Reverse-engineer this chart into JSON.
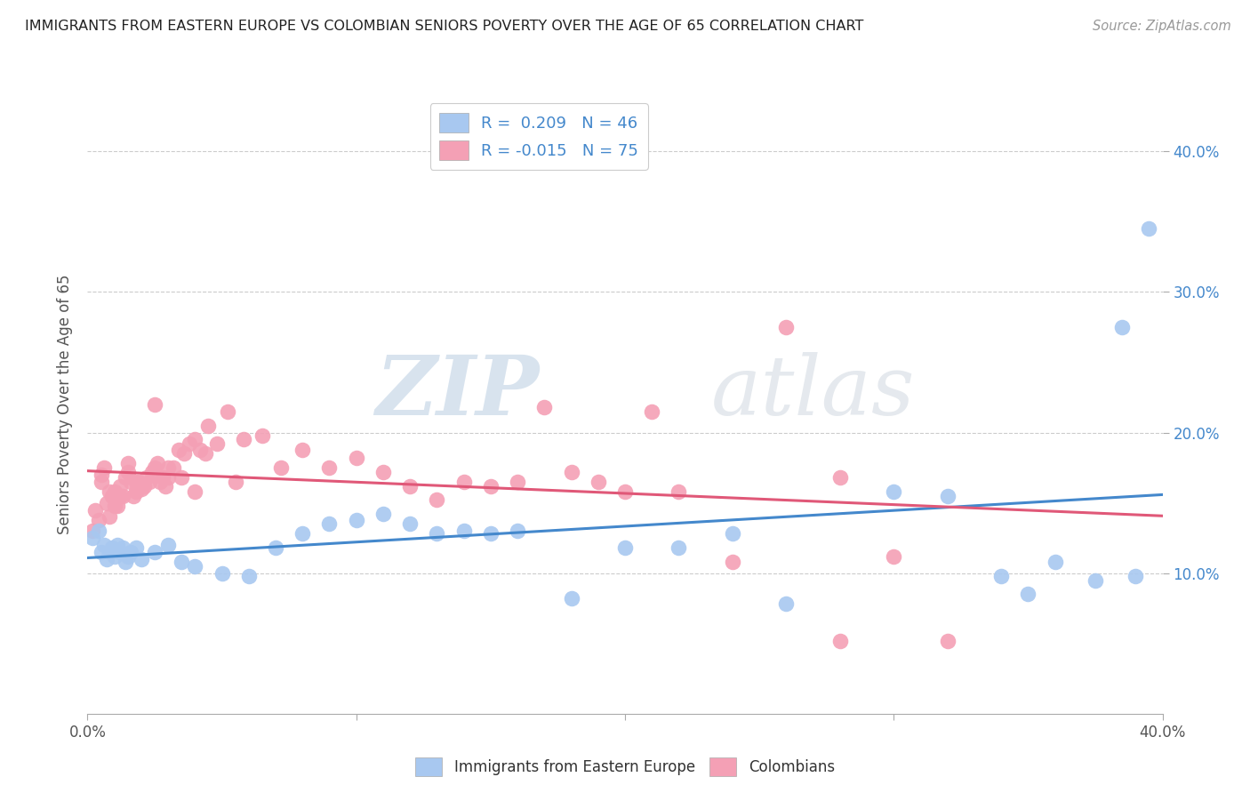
{
  "title": "IMMIGRANTS FROM EASTERN EUROPE VS COLOMBIAN SENIORS POVERTY OVER THE AGE OF 65 CORRELATION CHART",
  "source": "Source: ZipAtlas.com",
  "ylabel": "Seniors Poverty Over the Age of 65",
  "xlim": [
    0.0,
    0.4
  ],
  "ylim": [
    0.0,
    0.44
  ],
  "yticks": [
    0.1,
    0.2,
    0.3,
    0.4
  ],
  "ytick_labels": [
    "10.0%",
    "20.0%",
    "30.0%",
    "40.0%"
  ],
  "xticks": [
    0.0,
    0.1,
    0.2,
    0.3,
    0.4
  ],
  "xtick_labels": [
    "0.0%",
    "",
    "",
    "",
    "40.0%"
  ],
  "legend_labels": [
    "Immigrants from Eastern Europe",
    "Colombians"
  ],
  "r_blue": 0.209,
  "n_blue": 46,
  "r_pink": -0.015,
  "n_pink": 75,
  "blue_color": "#A8C8F0",
  "pink_color": "#F4A0B5",
  "line_blue": "#4488CC",
  "line_pink": "#E05878",
  "watermark_zip": "ZIP",
  "watermark_atlas": "atlas",
  "background_color": "#FFFFFF",
  "grid_color": "#CCCCCC",
  "title_color": "#222222",
  "source_color": "#999999",
  "tick_color": "#555555",
  "blue_x": [
    0.002,
    0.004,
    0.005,
    0.006,
    0.007,
    0.008,
    0.009,
    0.01,
    0.011,
    0.012,
    0.013,
    0.014,
    0.015,
    0.016,
    0.018,
    0.02,
    0.025,
    0.03,
    0.035,
    0.04,
    0.05,
    0.06,
    0.07,
    0.08,
    0.09,
    0.1,
    0.11,
    0.12,
    0.13,
    0.14,
    0.15,
    0.16,
    0.18,
    0.2,
    0.22,
    0.24,
    0.26,
    0.3,
    0.32,
    0.34,
    0.35,
    0.36,
    0.375,
    0.385,
    0.39,
    0.395
  ],
  "blue_y": [
    0.125,
    0.13,
    0.115,
    0.12,
    0.11,
    0.115,
    0.118,
    0.112,
    0.12,
    0.115,
    0.118,
    0.108,
    0.112,
    0.115,
    0.118,
    0.11,
    0.115,
    0.12,
    0.108,
    0.105,
    0.1,
    0.098,
    0.118,
    0.128,
    0.135,
    0.138,
    0.142,
    0.135,
    0.128,
    0.13,
    0.128,
    0.13,
    0.082,
    0.118,
    0.118,
    0.128,
    0.078,
    0.158,
    0.155,
    0.098,
    0.085,
    0.108,
    0.095,
    0.275,
    0.098,
    0.345
  ],
  "pink_x": [
    0.002,
    0.003,
    0.004,
    0.005,
    0.006,
    0.007,
    0.008,
    0.009,
    0.01,
    0.011,
    0.012,
    0.013,
    0.014,
    0.015,
    0.016,
    0.017,
    0.018,
    0.019,
    0.02,
    0.021,
    0.022,
    0.023,
    0.024,
    0.025,
    0.026,
    0.027,
    0.028,
    0.029,
    0.03,
    0.032,
    0.034,
    0.036,
    0.038,
    0.04,
    0.042,
    0.044,
    0.048,
    0.052,
    0.058,
    0.065,
    0.072,
    0.08,
    0.09,
    0.1,
    0.11,
    0.12,
    0.13,
    0.14,
    0.15,
    0.16,
    0.17,
    0.18,
    0.19,
    0.2,
    0.21,
    0.22,
    0.24,
    0.26,
    0.28,
    0.3,
    0.005,
    0.008,
    0.01,
    0.012,
    0.015,
    0.018,
    0.02,
    0.025,
    0.03,
    0.035,
    0.04,
    0.045,
    0.055,
    0.28,
    0.32
  ],
  "pink_y": [
    0.13,
    0.145,
    0.138,
    0.17,
    0.175,
    0.15,
    0.14,
    0.155,
    0.158,
    0.148,
    0.162,
    0.155,
    0.168,
    0.172,
    0.165,
    0.155,
    0.158,
    0.165,
    0.16,
    0.162,
    0.168,
    0.165,
    0.172,
    0.175,
    0.178,
    0.165,
    0.168,
    0.162,
    0.168,
    0.175,
    0.188,
    0.185,
    0.192,
    0.195,
    0.188,
    0.185,
    0.192,
    0.215,
    0.195,
    0.198,
    0.175,
    0.188,
    0.175,
    0.182,
    0.172,
    0.162,
    0.152,
    0.165,
    0.162,
    0.165,
    0.218,
    0.172,
    0.165,
    0.158,
    0.215,
    0.158,
    0.108,
    0.275,
    0.168,
    0.112,
    0.165,
    0.158,
    0.148,
    0.155,
    0.178,
    0.165,
    0.162,
    0.22,
    0.175,
    0.168,
    0.158,
    0.205,
    0.165,
    0.052,
    0.052
  ]
}
